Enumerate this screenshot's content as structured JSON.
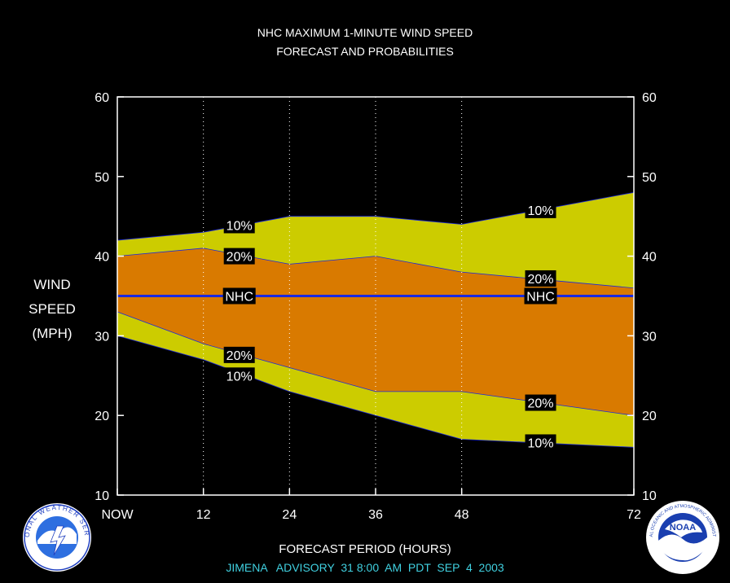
{
  "chart_data": {
    "type": "area",
    "title": "NHC MAXIMUM 1-MINUTE WIND SPEED",
    "subtitle": "FORECAST AND PROBABILITIES",
    "ylabel_lines": [
      "WIND",
      "SPEED",
      "(MPH)"
    ],
    "xlabel": "FORECAST PERIOD (HOURS)",
    "footer": "JIMENA   ADVISORY  31 8:00  AM  PDT  SEP  4  2003",
    "x_ticks": [
      {
        "x": 0,
        "label": "NOW"
      },
      {
        "x": 12,
        "label": "12"
      },
      {
        "x": 24,
        "label": "24"
      },
      {
        "x": 36,
        "label": "36"
      },
      {
        "x": 48,
        "label": "48"
      },
      {
        "x": 72,
        "label": "72"
      }
    ],
    "y_ticks": [
      10,
      20,
      30,
      40,
      50,
      60
    ],
    "xlim": [
      0,
      72
    ],
    "ylim": [
      10,
      60
    ],
    "x": [
      0,
      12,
      24,
      36,
      48,
      60,
      72
    ],
    "bands": {
      "upper10": [
        42,
        43,
        45,
        45,
        44,
        46,
        48
      ],
      "upper20": [
        40,
        41,
        39,
        40,
        38,
        37,
        36
      ],
      "lower20": [
        33,
        29,
        26,
        23,
        23,
        21.5,
        20
      ],
      "lower10": [
        30,
        27,
        23,
        20,
        17,
        16.5,
        16
      ]
    },
    "nhc_forecast": [
      35,
      35,
      35,
      35,
      35,
      35,
      35
    ],
    "labels": [
      {
        "text": "10%",
        "x": 17,
        "y": 43.9
      },
      {
        "text": "20%",
        "x": 17,
        "y": 40
      },
      {
        "text": "NHC",
        "x": 17,
        "y": 35
      },
      {
        "text": "20%",
        "x": 17,
        "y": 27.6
      },
      {
        "text": "10%",
        "x": 17,
        "y": 25
      },
      {
        "text": "10%",
        "x": 59,
        "y": 45.8
      },
      {
        "text": "20%",
        "x": 59,
        "y": 37.2
      },
      {
        "text": "NHC",
        "x": 59,
        "y": 35
      },
      {
        "text": "20%",
        "x": 59,
        "y": 21.6
      },
      {
        "text": "10%",
        "x": 59,
        "y": 16.6
      }
    ],
    "colors": {
      "band10": "#cccc00",
      "band20": "#d97a00",
      "nhc_line": "#1a2ae0",
      "axis": "#ffffff",
      "footer": "#40d0e0"
    },
    "grid": "dotted vertical lines at 12, 24, 36, 48 hours"
  },
  "logos": {
    "left": {
      "icon": "nws-logo-icon",
      "text": "NATIONAL WEATHER SERVICE"
    },
    "right": {
      "icon": "noaa-logo-icon",
      "text": "NOAA",
      "ring_text": "NATIONAL OCEANIC AND ATMOSPHERIC ADMINISTRATION · U.S. DEPARTMENT OF COMMERCE"
    }
  }
}
